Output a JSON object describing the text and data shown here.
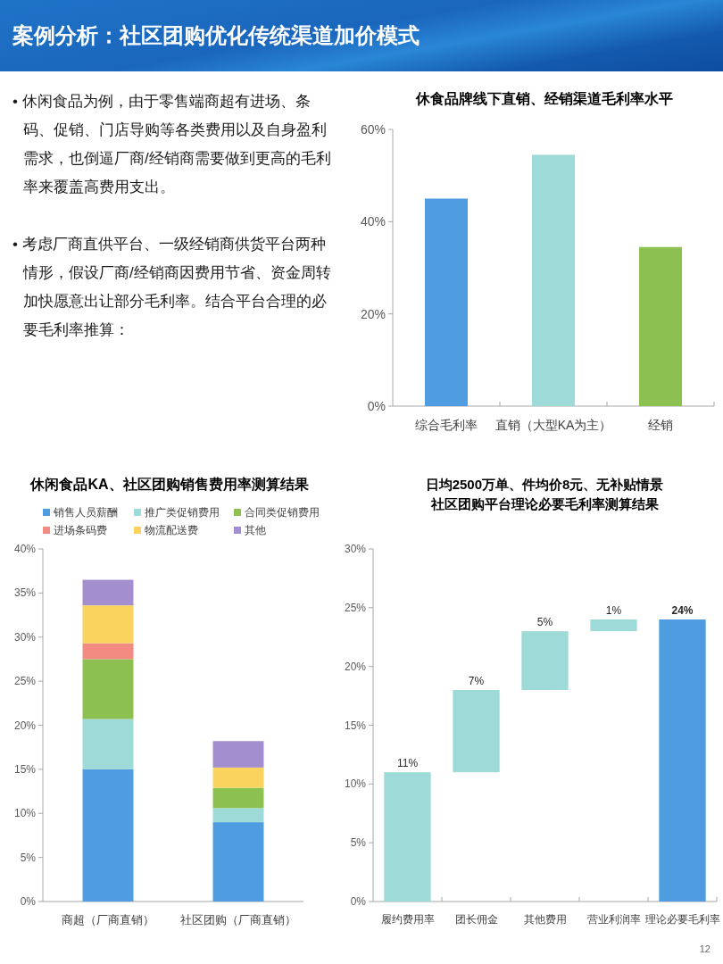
{
  "chart_data": [
    {
      "type": "other",
      "title": "案例分析：社区团购优化传统渠道加价模式",
      "annotations": [
        "• 休闲食品为例，由于零售端商超有进场、条码、促销、门店导购等各类费用以及自身盈利需求，也倒逼厂商/经销商需要做到更高的毛利率来覆盖高费用支出。",
        "• 考虑厂商直供平台、一级经销商供货平台两种情形，假设厂商/经销商因费用节省、资金周转加快愿意出让部分毛利率。结合平台合理的必要毛利率推算：",
        "12"
      ]
    },
    {
      "type": "bar",
      "title": "休食品牌线下直销、经销渠道毛利率水平",
      "categories": [
        "综合毛利率",
        "直销（大型KA为主）",
        "经销"
      ],
      "values": [
        45,
        54.5,
        34.5
      ],
      "colors": [
        "#4f9de0",
        "#9edad8",
        "#8cc152"
      ],
      "ylim": [
        0,
        60
      ],
      "yticks": [
        {
          "value": 0,
          "label": "0%"
        },
        {
          "value": 20,
          "label": "20%"
        },
        {
          "value": 40,
          "label": "40%"
        },
        {
          "value": 60,
          "label": "60%"
        }
      ]
    },
    {
      "type": "bar",
      "title": "休闲食品KA、社区团购销售费用率测算结果",
      "categories": [
        "商超（厂商直销）",
        "社区团购（厂商直销）"
      ],
      "stacked": true,
      "legend": "top",
      "series": [
        {
          "name": "销售人员薪酬",
          "color": "#4f9de0",
          "values": [
            15,
            9
          ]
        },
        {
          "name": "推广类促销费用",
          "color": "#9edad8",
          "values": [
            5.7,
            1.6
          ]
        },
        {
          "name": "合同类促销费用",
          "color": "#8cc152",
          "values": [
            6.8,
            2.3
          ]
        },
        {
          "name": "进场条码费",
          "color": "#f28b82",
          "values": [
            1.8,
            0
          ]
        },
        {
          "name": "物流配送费",
          "color": "#fad35e",
          "values": [
            4.3,
            2.3
          ]
        },
        {
          "name": "其他",
          "color": "#a38fcf",
          "values": [
            2.9,
            3
          ]
        }
      ],
      "ylim": [
        0,
        40
      ],
      "yticks": [
        {
          "value": 0,
          "label": "0%"
        },
        {
          "value": 5,
          "label": "5%"
        },
        {
          "value": 10,
          "label": "10%"
        },
        {
          "value": 15,
          "label": "15%"
        },
        {
          "value": 20,
          "label": "20%"
        },
        {
          "value": 25,
          "label": "25%"
        },
        {
          "value": 30,
          "label": "30%"
        },
        {
          "value": 35,
          "label": "35%"
        },
        {
          "value": 40,
          "label": "40%"
        }
      ]
    },
    {
      "type": "bar",
      "title": "日均2500万单、件均价8元、无补贴情景",
      "subtitle": "社区团购平台理论必要毛利率测算结果",
      "categories": [
        "履约费用率",
        "团长佣金",
        "其他费用",
        "营业利润率",
        "理论必要毛利率"
      ],
      "values": [
        11,
        7,
        5,
        1,
        24
      ],
      "base": [
        0,
        11,
        18,
        23,
        0
      ],
      "colors": [
        "#9edad8",
        "#9edad8",
        "#9edad8",
        "#9edad8",
        "#4f9de0"
      ],
      "value_labels": [
        "11%",
        "7%",
        "5%",
        "1%",
        "24%"
      ],
      "ylim": [
        0,
        30
      ],
      "yticks": [
        {
          "value": 0,
          "label": "0%"
        },
        {
          "value": 5,
          "label": "5%"
        },
        {
          "value": 10,
          "label": "10%"
        },
        {
          "value": 15,
          "label": "15%"
        },
        {
          "value": 20,
          "label": "20%"
        },
        {
          "value": 25,
          "label": "25%"
        },
        {
          "value": 30,
          "label": "30%"
        }
      ]
    }
  ]
}
